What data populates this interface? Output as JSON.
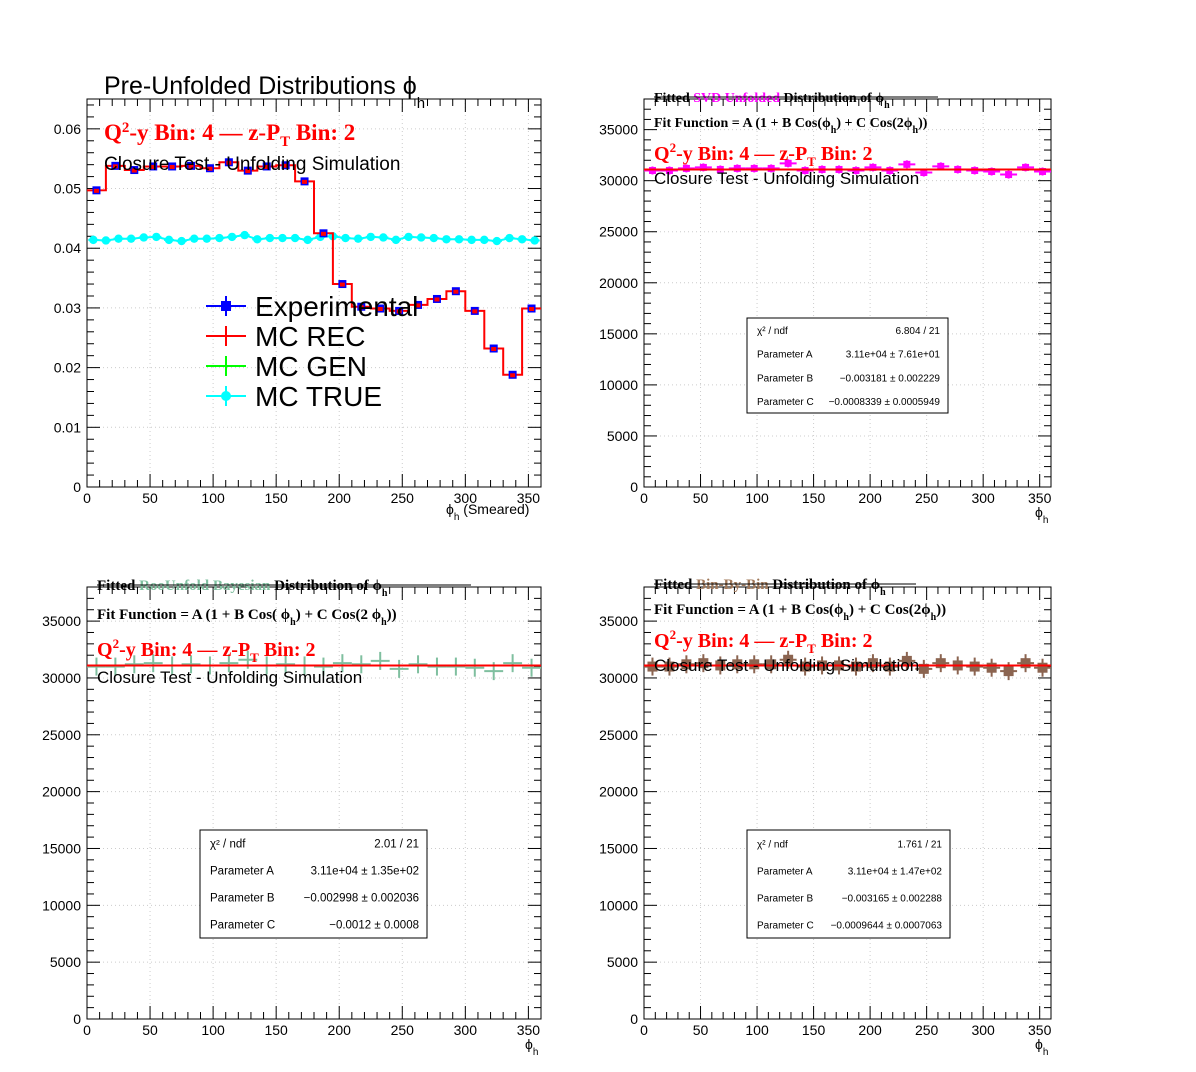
{
  "chart_data": [
    {
      "type": "histogram",
      "title_main": "Pre-Unfolded Distributions ",
      "title_phi": "ϕ",
      "title_sub": "h",
      "bin_line": {
        "q": "Q",
        "q_sup": "2",
        "rest1": "-y Bin: 4  —  z-P",
        "pt_sub": "T",
        "rest2": " Bin: 2"
      },
      "closure": "Closure Test - Unfolding Simulation",
      "xlabel_phi": "ϕ",
      "xlabel_sub": "h",
      "xlabel_rest": " (Smeared)",
      "xlim": [
        0,
        360
      ],
      "ylim": [
        0,
        0.065
      ],
      "xticks": [
        "0",
        "50",
        "100",
        "150",
        "200",
        "250",
        "300",
        "350"
      ],
      "xtick_values": [
        0,
        50,
        100,
        150,
        200,
        250,
        300,
        350
      ],
      "yticks": [
        "0",
        "0.01",
        "0.02",
        "0.03",
        "0.04",
        "0.05",
        "0.06"
      ],
      "ytick_values": [
        0,
        0.01,
        0.02,
        0.03,
        0.04,
        0.05,
        0.06
      ],
      "bin_edges": [
        0,
        15,
        30,
        45,
        60,
        75,
        90,
        105,
        120,
        135,
        150,
        165,
        180,
        195,
        210,
        225,
        240,
        255,
        270,
        285,
        300,
        315,
        330,
        345,
        360
      ],
      "series": [
        {
          "name": "Experimental",
          "color": "#0000ff",
          "values": [
            0.0497,
            0.0538,
            0.0531,
            0.0537,
            0.0537,
            0.0538,
            0.0534,
            0.0544,
            0.053,
            0.0537,
            0.0539,
            0.0512,
            0.0425,
            0.034,
            0.0302,
            0.0299,
            0.0295,
            0.0305,
            0.0315,
            0.0328,
            0.0295,
            0.0232,
            0.0188,
            0.0299
          ]
        },
        {
          "name": "MC REC",
          "color": "#ff0000",
          "values": [
            0.0497,
            0.0538,
            0.0531,
            0.0537,
            0.0537,
            0.0538,
            0.0534,
            0.0544,
            0.053,
            0.0537,
            0.0539,
            0.0512,
            0.0425,
            0.034,
            0.0302,
            0.0299,
            0.0295,
            0.0305,
            0.0315,
            0.0328,
            0.0295,
            0.0232,
            0.0188,
            0.0299
          ]
        },
        {
          "name": "MC GEN",
          "color": "#00ff00",
          "values": []
        },
        {
          "name": "MC TRUE",
          "color": "#00ffff",
          "x": [
            5,
            15,
            25,
            35,
            45,
            55,
            65,
            75,
            85,
            95,
            105,
            115,
            125,
            135,
            145,
            155,
            165,
            175,
            185,
            195,
            205,
            215,
            225,
            235,
            245,
            255,
            265,
            275,
            285,
            295,
            305,
            315,
            325,
            335,
            345,
            355
          ],
          "values": [
            0.0414,
            0.0413,
            0.0416,
            0.0416,
            0.0418,
            0.0419,
            0.0414,
            0.0412,
            0.0416,
            0.0416,
            0.0417,
            0.0419,
            0.0422,
            0.0415,
            0.0417,
            0.0417,
            0.0417,
            0.0414,
            0.0419,
            0.042,
            0.0417,
            0.0416,
            0.0419,
            0.0418,
            0.0414,
            0.0419,
            0.0418,
            0.0417,
            0.0415,
            0.0415,
            0.0414,
            0.0414,
            0.0412,
            0.0417,
            0.0415,
            0.0413
          ]
        }
      ],
      "legend": [
        "Experimental",
        "MC REC",
        "MC GEN",
        "MC TRUE"
      ]
    },
    {
      "type": "histogram",
      "title_pre": "Fitted  ",
      "title_method": "SVD Unfolded",
      "title_method_color": "#ff00ff",
      "title_post": " Distribution of  ",
      "title_phi": "ϕ",
      "title_sub": "h",
      "fit_function": {
        "a": "Fit Function = A (1 + B Cos(ϕ",
        "b": "h",
        "c": ") + C Cos(2ϕ",
        "d": "h",
        "e": "))"
      },
      "bin_line": {
        "q": "Q",
        "q_sup": "2",
        "rest1": "-y Bin: 4  —  z-P",
        "pt_sub": "T",
        "rest2": " Bin: 2"
      },
      "closure": "Closure Test - Unfolding Simulation",
      "xlabel_phi": "ϕ",
      "xlabel_sub": "h",
      "xlim": [
        0,
        360
      ],
      "ylim": [
        0,
        38000
      ],
      "xticks": [
        "0",
        "50",
        "100",
        "150",
        "200",
        "250",
        "300",
        "350"
      ],
      "xtick_values": [
        0,
        50,
        100,
        150,
        200,
        250,
        300,
        350
      ],
      "yticks": [
        "0",
        "5000",
        "10000",
        "15000",
        "20000",
        "25000",
        "30000",
        "35000"
      ],
      "ytick_values": [
        0,
        5000,
        10000,
        15000,
        20000,
        25000,
        30000,
        35000
      ],
      "data_color": "#ff00ff",
      "x": [
        7.5,
        22.5,
        37.5,
        52.5,
        67.5,
        82.5,
        97.5,
        112.5,
        127.5,
        142.5,
        157.5,
        172.5,
        187.5,
        202.5,
        217.5,
        232.5,
        247.5,
        262.5,
        277.5,
        292.5,
        307.5,
        322.5,
        337.5,
        352.5
      ],
      "values": [
        31000,
        31000,
        31200,
        31300,
        31100,
        31200,
        31200,
        31200,
        31700,
        31000,
        31100,
        31100,
        31000,
        31300,
        31000,
        31600,
        30800,
        31400,
        31100,
        31000,
        30900,
        30600,
        31300,
        30900
      ],
      "fit_value": 31100,
      "stats": {
        "chi_label": "χ² / ndf",
        "chi_value": "6.804 / 21",
        "pa_label": "Parameter A",
        "pa_value": "3.11e+04  ± 7.61e+01",
        "pb_label": "Parameter B",
        "pb_value": "−0.003181  ± 0.002229",
        "pc_label": "Parameter C",
        "pc_value": "−0.0008339  ± 0.0005949"
      }
    },
    {
      "type": "histogram",
      "title_pre": "Fitted  ",
      "title_method": "RooUnfold Bayesian",
      "title_method_color": "#7fbf9f",
      "title_post": "  Distribution of    ",
      "title_phi": "ϕ",
      "title_sub": "h",
      "fit_function": {
        "a": "Fit Function = A (1 + B Cos(   ϕ",
        "b": "h",
        "c": ") + C Cos(2 ϕ",
        "d": "h",
        "e": "))"
      },
      "bin_line": {
        "q": "Q",
        "q_sup": "2",
        "rest1": "-y Bin: 4  —  z-P",
        "pt_sub": "T",
        "rest2": " Bin: 2"
      },
      "closure": "Closure Test - Unfolding Simulation",
      "xlabel_phi": "ϕ",
      "xlabel_sub": "h",
      "xlim": [
        0,
        360
      ],
      "ylim": [
        0,
        38000
      ],
      "xticks": [
        "0",
        "50",
        "100",
        "150",
        "200",
        "250",
        "300",
        "350"
      ],
      "xtick_values": [
        0,
        50,
        100,
        150,
        200,
        250,
        300,
        350
      ],
      "yticks": [
        "0",
        "5000",
        "10000",
        "15000",
        "20000",
        "25000",
        "30000",
        "35000"
      ],
      "ytick_values": [
        0,
        5000,
        10000,
        15000,
        20000,
        25000,
        30000,
        35000
      ],
      "data_color": "#7fbf9f",
      "x": [
        7.5,
        22.5,
        37.5,
        52.5,
        67.5,
        82.5,
        97.5,
        112.5,
        127.5,
        142.5,
        157.5,
        172.5,
        187.5,
        202.5,
        217.5,
        232.5,
        247.5,
        262.5,
        277.5,
        292.5,
        307.5,
        322.5,
        337.5,
        352.5
      ],
      "values": [
        31000,
        31000,
        31200,
        31300,
        31100,
        31200,
        31100,
        31300,
        31600,
        31100,
        31200,
        31100,
        31000,
        31300,
        31200,
        31500,
        30800,
        31200,
        31000,
        31000,
        30900,
        30600,
        31300,
        30900
      ],
      "fit_value": 31100,
      "stats": {
        "chi_label": "χ² / ndf",
        "chi_value": "2.01 / 21",
        "pa_label": "Parameter A",
        "pa_value": "3.11e+04 ± 1.35e+02",
        "pb_label": "Parameter B",
        "pb_value": "−0.002998 ± 0.002036",
        "pc_label": "Parameter C",
        "pc_value": "−0.0012 ± 0.0008"
      }
    },
    {
      "type": "histogram",
      "title_pre": "Fitted  ",
      "title_method": "Bin-By-Bin",
      "title_method_color": "#a0785a",
      "title_post": " Distribution of  ",
      "title_phi": "ϕ",
      "title_sub": "h",
      "fit_function": {
        "a": "Fit Function = A (1 + B Cos(ϕ",
        "b": "h",
        "c": ") + C Cos(2ϕ",
        "d": "h",
        "e": "))"
      },
      "bin_line": {
        "q": "Q",
        "q_sup": "2",
        "rest1": "-y Bin: 4  —  z-P",
        "pt_sub": "T",
        "rest2": " Bin: 2"
      },
      "closure": "Closure Test - Unfolding Simulation",
      "xlabel_phi": "ϕ",
      "xlabel_sub": "h",
      "xlim": [
        0,
        360
      ],
      "ylim": [
        0,
        38000
      ],
      "xticks": [
        "0",
        "50",
        "100",
        "150",
        "200",
        "250",
        "300",
        "350"
      ],
      "xtick_values": [
        0,
        50,
        100,
        150,
        200,
        250,
        300,
        350
      ],
      "yticks": [
        "0",
        "5000",
        "10000",
        "15000",
        "20000",
        "25000",
        "30000",
        "35000"
      ],
      "ytick_values": [
        0,
        5000,
        10000,
        15000,
        20000,
        25000,
        30000,
        35000
      ],
      "data_color": "#8b6450",
      "x": [
        7.5,
        22.5,
        37.5,
        52.5,
        67.5,
        82.5,
        97.5,
        112.5,
        127.5,
        142.5,
        157.5,
        172.5,
        187.5,
        202.5,
        217.5,
        232.5,
        247.5,
        262.5,
        277.5,
        292.5,
        307.5,
        322.5,
        337.5,
        352.5
      ],
      "values": [
        31000,
        31000,
        31200,
        31300,
        31100,
        31200,
        31200,
        31200,
        31600,
        31000,
        31100,
        31100,
        31000,
        31300,
        31000,
        31500,
        30800,
        31300,
        31100,
        31000,
        30900,
        30600,
        31300,
        30900
      ],
      "fit_value": 31100,
      "stats": {
        "chi_label": "χ² / ndf",
        "chi_value": "1.761 / 21",
        "pa_label": "Parameter A",
        "pa_value": "3.11e+04 ± 1.47e+02",
        "pb_label": "Parameter B",
        "pb_value": "−0.003165 ± 0.002288",
        "pc_label": "Parameter C",
        "pc_value": "−0.0009644 ± 0.0007063"
      }
    }
  ]
}
